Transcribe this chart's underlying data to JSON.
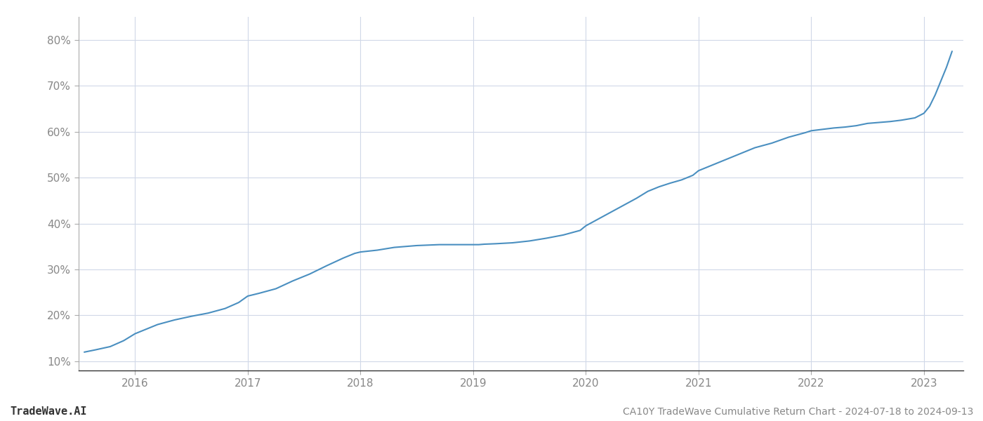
{
  "title": "CA10Y TradeWave Cumulative Return Chart - 2024-07-18 to 2024-09-13",
  "watermark": "TradeWave.AI",
  "line_color": "#4a8fc0",
  "line_width": 1.5,
  "background_color": "#ffffff",
  "grid_color": "#d0d8e8",
  "x_data": [
    2015.55,
    2015.65,
    2015.78,
    2015.9,
    2016.0,
    2016.1,
    2016.2,
    2016.35,
    2016.5,
    2016.65,
    2016.8,
    2016.92,
    2017.0,
    2017.1,
    2017.25,
    2017.4,
    2017.55,
    2017.7,
    2017.85,
    2017.95,
    2018.0,
    2018.15,
    2018.3,
    2018.4,
    2018.5,
    2018.6,
    2018.7,
    2018.8,
    2018.9,
    2018.98,
    2019.0,
    2019.05,
    2019.1,
    2019.2,
    2019.35,
    2019.5,
    2019.65,
    2019.8,
    2019.95,
    2020.0,
    2020.15,
    2020.3,
    2020.45,
    2020.55,
    2020.65,
    2020.75,
    2020.85,
    2020.95,
    2021.0,
    2021.1,
    2021.2,
    2021.35,
    2021.5,
    2021.65,
    2021.8,
    2021.95,
    2022.0,
    2022.1,
    2022.2,
    2022.3,
    2022.4,
    2022.5,
    2022.6,
    2022.7,
    2022.8,
    2022.92,
    2023.0,
    2023.05,
    2023.1,
    2023.15,
    2023.2,
    2023.25
  ],
  "y_data": [
    12.0,
    12.5,
    13.2,
    14.5,
    16.0,
    17.0,
    18.0,
    19.0,
    19.8,
    20.5,
    21.5,
    22.8,
    24.2,
    24.8,
    25.8,
    27.5,
    29.0,
    30.8,
    32.5,
    33.5,
    33.8,
    34.2,
    34.8,
    35.0,
    35.2,
    35.3,
    35.4,
    35.4,
    35.4,
    35.4,
    35.4,
    35.4,
    35.5,
    35.6,
    35.8,
    36.2,
    36.8,
    37.5,
    38.5,
    39.5,
    41.5,
    43.5,
    45.5,
    47.0,
    48.0,
    48.8,
    49.5,
    50.5,
    51.5,
    52.5,
    53.5,
    55.0,
    56.5,
    57.5,
    58.8,
    59.8,
    60.2,
    60.5,
    60.8,
    61.0,
    61.3,
    61.8,
    62.0,
    62.2,
    62.5,
    63.0,
    64.0,
    65.5,
    68.0,
    71.0,
    74.0,
    77.5
  ],
  "yticks": [
    10,
    20,
    30,
    40,
    50,
    60,
    70,
    80
  ],
  "ylim": [
    8,
    85
  ],
  "xticks": [
    2016,
    2017,
    2018,
    2019,
    2020,
    2021,
    2022,
    2023
  ],
  "xlim": [
    2015.5,
    2023.35
  ],
  "tick_label_color": "#888888",
  "tick_fontsize": 11,
  "title_fontsize": 10,
  "watermark_fontsize": 11,
  "left_spine_color": "#aaaaaa",
  "bottom_spine_color": "#333333"
}
